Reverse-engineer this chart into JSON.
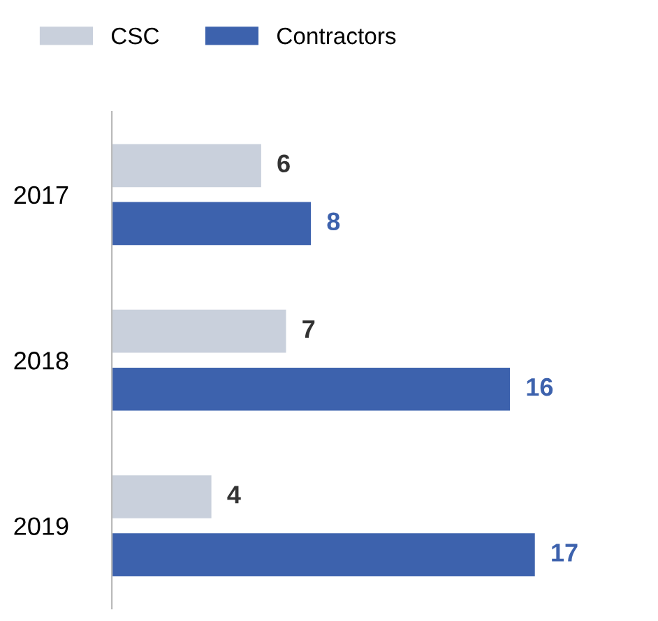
{
  "chart_data": {
    "type": "bar",
    "orientation": "horizontal",
    "categories": [
      "2017",
      "2018",
      "2019"
    ],
    "series": [
      {
        "name": "CSC",
        "color": "#c9d0dc",
        "values": [
          6,
          7,
          4
        ]
      },
      {
        "name": "Contractors",
        "color": "#3d62ad",
        "values": [
          8,
          16,
          17
        ]
      }
    ],
    "data_labels": true,
    "legend": "top left",
    "grid": false
  }
}
